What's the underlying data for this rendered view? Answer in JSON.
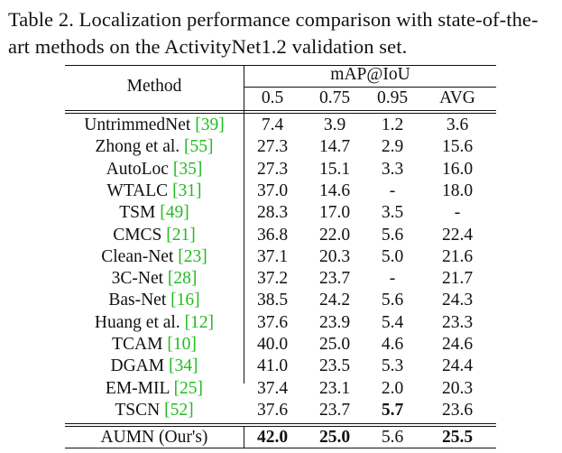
{
  "caption": {
    "line1": "Table 2.  Localization performance comparison with state-of-the-",
    "line2": "art methods on the ActivityNet1.2 validation set."
  },
  "table": {
    "method_header": "Method",
    "metric_header": "mAP@IoU",
    "columns": [
      "0.5",
      "0.75",
      "0.95",
      "AVG"
    ],
    "rows": [
      {
        "name": "UntrimmedNet ",
        "ref": "[39]",
        "values": [
          "7.4",
          "3.9",
          "1.2",
          "3.6"
        ],
        "bold": []
      },
      {
        "name": "Zhong et al. ",
        "ref": "[55]",
        "values": [
          "27.3",
          "14.7",
          "2.9",
          "15.6"
        ],
        "bold": []
      },
      {
        "name": "AutoLoc ",
        "ref": "[35]",
        "values": [
          "27.3",
          "15.1",
          "3.3",
          "16.0"
        ],
        "bold": []
      },
      {
        "name": "WTALC ",
        "ref": "[31]",
        "values": [
          "37.0",
          "14.6",
          "-",
          "18.0"
        ],
        "bold": []
      },
      {
        "name": "TSM ",
        "ref": "[49]",
        "values": [
          "28.3",
          "17.0",
          "3.5",
          "-"
        ],
        "bold": []
      },
      {
        "name": "CMCS ",
        "ref": "[21]",
        "values": [
          "36.8",
          "22.0",
          "5.6",
          "22.4"
        ],
        "bold": []
      },
      {
        "name": "Clean-Net ",
        "ref": "[23]",
        "values": [
          "37.1",
          "20.3",
          "5.0",
          "21.6"
        ],
        "bold": []
      },
      {
        "name": "3C-Net ",
        "ref": "[28]",
        "values": [
          "37.2",
          "23.7",
          "-",
          "21.7"
        ],
        "bold": []
      },
      {
        "name": "Bas-Net ",
        "ref": "[16]",
        "values": [
          "38.5",
          "24.2",
          "5.6",
          "24.3"
        ],
        "bold": []
      },
      {
        "name": "Huang et al. ",
        "ref": "[12]",
        "values": [
          "37.6",
          "23.9",
          "5.4",
          "23.3"
        ],
        "bold": []
      },
      {
        "name": "TCAM ",
        "ref": "[10]",
        "values": [
          "40.0",
          "25.0",
          "4.6",
          "24.6"
        ],
        "bold": []
      },
      {
        "name": "DGAM ",
        "ref": "[34]",
        "values": [
          "41.0",
          "23.5",
          "5.3",
          "24.4"
        ],
        "bold": []
      },
      {
        "name": "EM-MIL ",
        "ref": "[25]",
        "values": [
          "37.4",
          "23.1",
          "2.0",
          "20.3"
        ],
        "bold": []
      },
      {
        "name": "TSCN ",
        "ref": "[52]",
        "values": [
          "37.6",
          "23.7",
          "5.7",
          "23.6"
        ],
        "bold": [
          2
        ]
      }
    ],
    "ours": {
      "name": "AUMN (Our's)",
      "values": [
        "42.0",
        "25.0",
        "5.6",
        "25.5"
      ],
      "bold": [
        0,
        1,
        3
      ]
    }
  }
}
